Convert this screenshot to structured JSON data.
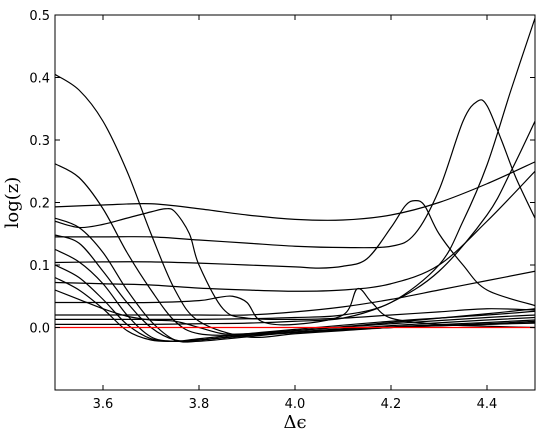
{
  "chart_data": {
    "type": "line",
    "title": "",
    "xlabel": "Δϵ",
    "ylabel": "log(z)",
    "xlim": [
      3.5,
      4.5
    ],
    "ylim": [
      -0.1,
      0.5
    ],
    "grid": false,
    "xticks": [
      3.6,
      3.8,
      4.0,
      4.2,
      4.4
    ],
    "xtick_labels": [
      "3.6",
      "3.8",
      "4.0",
      "4.2",
      "4.4"
    ],
    "yticks": [
      0.0,
      0.1,
      0.2,
      0.3,
      0.4,
      0.5
    ],
    "ytick_labels": [
      "0.0",
      "0.1",
      "0.2",
      "0.3",
      "0.4",
      "0.5"
    ],
    "series": [
      {
        "color": "#ff0000",
        "x": [
          3.5,
          4.5
        ],
        "y": [
          0.0,
          0.0
        ]
      },
      {
        "color": "#000000",
        "x": [
          3.5,
          3.55,
          3.6,
          3.65,
          3.7,
          3.75,
          3.8,
          3.9,
          4.0,
          4.1,
          4.2,
          4.3,
          4.4,
          4.5
        ],
        "y": [
          0.405,
          0.38,
          0.33,
          0.25,
          0.15,
          0.06,
          0.01,
          -0.015,
          -0.01,
          -0.005,
          0.0,
          0.003,
          0.005,
          0.007
        ]
      },
      {
        "color": "#000000",
        "x": [
          3.5,
          3.55,
          3.6,
          3.65,
          3.7,
          3.75,
          3.8,
          3.9,
          4.0,
          4.2,
          4.4,
          4.5
        ],
        "y": [
          0.262,
          0.24,
          0.19,
          0.12,
          0.06,
          0.01,
          -0.01,
          -0.012,
          -0.008,
          0.0,
          0.005,
          0.008
        ]
      },
      {
        "color": "#000000",
        "x": [
          3.5,
          3.55,
          3.6,
          3.65,
          3.7,
          3.75,
          3.8,
          3.9,
          4.0,
          4.2,
          4.4,
          4.5
        ],
        "y": [
          0.175,
          0.16,
          0.12,
          0.06,
          0.01,
          -0.02,
          -0.022,
          -0.015,
          -0.008,
          0.0,
          0.006,
          0.01
        ]
      },
      {
        "color": "#000000",
        "x": [
          3.5,
          3.55,
          3.6,
          3.65,
          3.7,
          3.75,
          3.8,
          3.9,
          4.0,
          4.2,
          4.4,
          4.5
        ],
        "y": [
          0.148,
          0.135,
          0.09,
          0.04,
          0.0,
          -0.02,
          -0.02,
          -0.013,
          -0.008,
          0.001,
          0.008,
          0.012
        ]
      },
      {
        "color": "#000000",
        "x": [
          3.5,
          3.55,
          3.6,
          3.65,
          3.7,
          3.75,
          3.8,
          3.9,
          4.0,
          4.2,
          4.4,
          4.5
        ],
        "y": [
          0.125,
          0.105,
          0.07,
          0.02,
          -0.015,
          -0.022,
          -0.02,
          -0.013,
          -0.007,
          0.003,
          0.012,
          0.016
        ]
      },
      {
        "color": "#000000",
        "x": [
          3.5,
          3.55,
          3.6,
          3.65,
          3.7,
          3.75,
          3.8,
          3.9,
          4.0,
          4.2,
          4.4,
          4.5
        ],
        "y": [
          0.1,
          0.08,
          0.045,
          0.005,
          -0.018,
          -0.022,
          -0.02,
          -0.012,
          -0.005,
          0.006,
          0.016,
          0.02
        ]
      },
      {
        "color": "#000000",
        "x": [
          3.5,
          3.55,
          3.6,
          3.65,
          3.7,
          3.75,
          3.8,
          3.9,
          4.0,
          4.2,
          4.4,
          4.5
        ],
        "y": [
          0.08,
          0.06,
          0.03,
          -0.005,
          -0.02,
          -0.022,
          -0.018,
          -0.01,
          -0.003,
          0.01,
          0.02,
          0.026
        ]
      },
      {
        "color": "#000000",
        "x": [
          3.5,
          3.55,
          3.6,
          3.65,
          3.7,
          3.75,
          3.8,
          3.85,
          3.9,
          4.0,
          4.2,
          4.4,
          4.5
        ],
        "y": [
          0.06,
          0.045,
          0.03,
          0.018,
          0.012,
          0.01,
          0.0,
          -0.01,
          -0.01,
          -0.005,
          0.008,
          0.022,
          0.03
        ]
      },
      {
        "color": "#000000",
        "x": [
          3.5,
          3.6,
          3.7,
          3.8,
          3.84,
          3.87,
          3.9,
          3.93,
          4.0,
          4.1,
          4.13,
          4.16,
          4.2,
          4.3,
          4.4,
          4.5
        ],
        "y": [
          0.04,
          0.04,
          0.04,
          0.043,
          0.048,
          0.05,
          0.04,
          0.01,
          0.005,
          0.02,
          0.062,
          0.04,
          0.015,
          0.005,
          0.002,
          0.0
        ]
      },
      {
        "color": "#000000",
        "x": [
          3.5,
          3.6,
          3.7,
          3.8,
          3.9,
          4.0,
          4.1,
          4.2,
          4.3,
          4.4,
          4.5
        ],
        "y": [
          0.02,
          0.02,
          0.02,
          0.02,
          0.02,
          0.025,
          0.033,
          0.045,
          0.06,
          0.075,
          0.09
        ]
      },
      {
        "color": "#000000",
        "x": [
          3.5,
          3.55,
          3.6,
          3.65,
          3.7,
          3.73,
          3.75,
          3.78,
          3.8,
          3.85,
          3.9,
          4.0,
          4.1,
          4.2,
          4.3,
          4.4,
          4.5
        ],
        "y": [
          0.17,
          0.16,
          0.165,
          0.175,
          0.185,
          0.19,
          0.185,
          0.15,
          0.1,
          0.03,
          0.015,
          0.013,
          0.015,
          0.02,
          0.025,
          0.03,
          0.028
        ]
      },
      {
        "color": "#000000",
        "x": [
          3.5,
          3.6,
          3.7,
          3.8,
          3.9,
          4.0,
          4.05,
          4.1,
          4.15,
          4.2,
          4.23,
          4.25,
          4.27,
          4.3,
          4.35,
          4.4,
          4.5
        ],
        "y": [
          0.104,
          0.105,
          0.105,
          0.103,
          0.1,
          0.097,
          0.095,
          0.098,
          0.11,
          0.16,
          0.195,
          0.203,
          0.195,
          0.15,
          0.1,
          0.06,
          0.035
        ]
      },
      {
        "color": "#000000",
        "x": [
          3.5,
          3.6,
          3.7,
          3.8,
          3.9,
          4.0,
          4.1,
          4.2,
          4.25,
          4.3,
          4.35,
          4.38,
          4.4,
          4.43,
          4.46,
          4.5
        ],
        "y": [
          0.145,
          0.145,
          0.145,
          0.14,
          0.135,
          0.13,
          0.128,
          0.13,
          0.15,
          0.22,
          0.33,
          0.362,
          0.355,
          0.3,
          0.24,
          0.175
        ]
      },
      {
        "color": "#000000",
        "x": [
          3.5,
          3.6,
          3.7,
          3.8,
          3.9,
          4.0,
          4.1,
          4.2,
          4.3,
          4.4,
          4.5
        ],
        "y": [
          0.193,
          0.196,
          0.198,
          0.19,
          0.18,
          0.173,
          0.172,
          0.18,
          0.2,
          0.23,
          0.265
        ]
      },
      {
        "color": "#000000",
        "x": [
          3.5,
          3.6,
          3.7,
          3.8,
          3.9,
          4.0,
          4.1,
          4.2,
          4.3,
          4.4,
          4.5
        ],
        "y": [
          0.072,
          0.07,
          0.068,
          0.063,
          0.06,
          0.058,
          0.06,
          0.07,
          0.1,
          0.17,
          0.25
        ]
      },
      {
        "color": "#000000",
        "x": [
          3.5,
          3.6,
          3.7,
          3.8,
          3.9,
          4.0,
          4.1,
          4.2,
          4.3,
          4.35,
          4.4,
          4.45,
          4.5
        ],
        "y": [
          0.013,
          0.013,
          0.013,
          0.013,
          0.014,
          0.016,
          0.02,
          0.04,
          0.1,
          0.17,
          0.26,
          0.38,
          0.495
        ]
      },
      {
        "color": "#000000",
        "x": [
          3.5,
          3.6,
          3.7,
          3.8,
          3.9,
          4.0,
          4.1,
          4.2,
          4.3,
          4.4,
          4.45,
          4.5
        ],
        "y": [
          0.005,
          0.005,
          0.005,
          0.006,
          0.007,
          0.01,
          0.015,
          0.04,
          0.09,
          0.18,
          0.25,
          0.33
        ]
      }
    ]
  }
}
